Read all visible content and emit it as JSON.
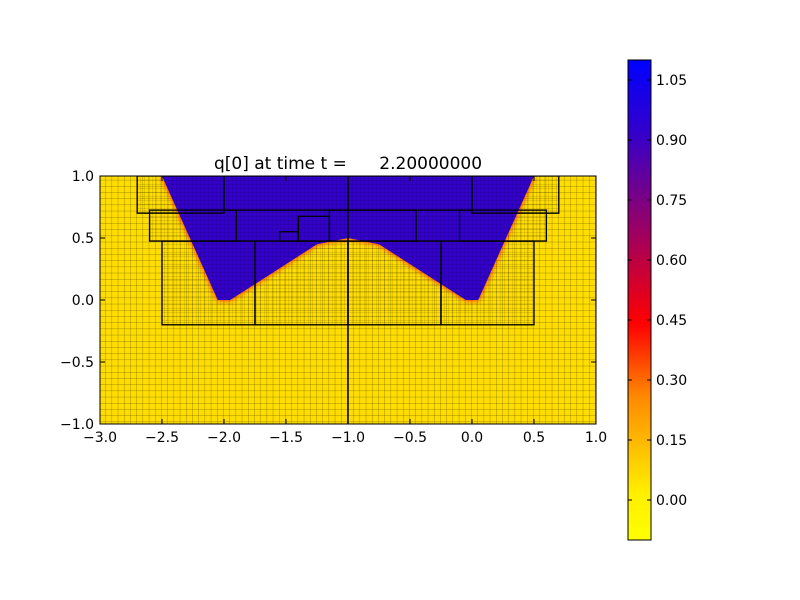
{
  "chart_data": {
    "type": "heatmap",
    "title": "q[0] at time t =      2.20000000",
    "xlabel": "",
    "ylabel": "",
    "xlim": [
      -3.0,
      1.0
    ],
    "ylim": [
      -1.0,
      1.0
    ],
    "x_ticks": [
      -3.0,
      -2.5,
      -2.0,
      -1.5,
      -1.0,
      -0.5,
      0.0,
      0.5,
      1.0
    ],
    "x_tick_labels": [
      "−3.0",
      "−2.5",
      "−2.0",
      "−1.5",
      "−1.0",
      "−0.5",
      "0.0",
      "0.5",
      "1.0"
    ],
    "y_ticks": [
      -1.0,
      -0.5,
      0.0,
      0.5,
      1.0
    ],
    "y_tick_labels": [
      "−1.0",
      "−0.5",
      "0.0",
      "0.5",
      "1.0"
    ],
    "grid": true,
    "colormap": {
      "low_color": "#ffff00",
      "mid_colors": [
        "#ff9900",
        "#ff0000",
        "#990066"
      ],
      "high_color": "#0000ff",
      "range": [
        -0.1,
        1.1
      ],
      "ticks": [
        0.0,
        0.15,
        0.3,
        0.45,
        0.6,
        0.75,
        0.9,
        1.05
      ],
      "tick_labels": [
        "0.00",
        "0.15",
        "0.30",
        "0.45",
        "0.60",
        "0.75",
        "0.90",
        "1.05"
      ]
    },
    "background_value": 0.0,
    "high_region_value": 1.0,
    "high_region_vertices": [
      [
        -2.5,
        1.0
      ],
      [
        -2.05,
        0.0
      ],
      [
        -1.95,
        0.0
      ],
      [
        -1.25,
        0.45
      ],
      [
        -1.0,
        0.5
      ],
      [
        -0.75,
        0.45
      ],
      [
        -0.05,
        0.0
      ],
      [
        0.05,
        0.0
      ],
      [
        0.5,
        1.0
      ]
    ],
    "refinement_patches": [
      {
        "x0": -2.7,
        "x1": -2.0,
        "y0": 0.7,
        "y1": 1.0
      },
      {
        "x0": -2.6,
        "x1": -1.9,
        "y0": 0.475,
        "y1": 0.725
      },
      {
        "x0": -2.5,
        "x1": -1.75,
        "y0": -0.2,
        "y1": 0.475
      },
      {
        "x0": -1.75,
        "x1": -1.0,
        "y0": -0.2,
        "y1": 0.475
      },
      {
        "x0": -1.0,
        "x1": -0.25,
        "y0": -0.2,
        "y1": 0.475
      },
      {
        "x0": -0.25,
        "x1": 0.5,
        "y0": -0.2,
        "y1": 0.475
      },
      {
        "x0": 0.0,
        "x1": 0.7,
        "y0": 0.7,
        "y1": 1.0
      },
      {
        "x0": -0.1,
        "x1": 0.6,
        "y0": 0.475,
        "y1": 0.725
      },
      {
        "x0": -2.0,
        "x1": -1.0,
        "y0": 0.725,
        "y1": 1.0
      },
      {
        "x0": -1.0,
        "x1": 0.0,
        "y0": 0.725,
        "y1": 1.0
      },
      {
        "x0": -1.15,
        "x1": -0.45,
        "y0": 0.475,
        "y1": 0.725
      },
      {
        "x0": -1.4,
        "x1": -1.15,
        "y0": 0.475,
        "y1": 0.675
      },
      {
        "x0": -1.55,
        "x1": -1.4,
        "y0": 0.475,
        "y1": 0.55
      }
    ],
    "vertical_divider_x": -1.0
  }
}
